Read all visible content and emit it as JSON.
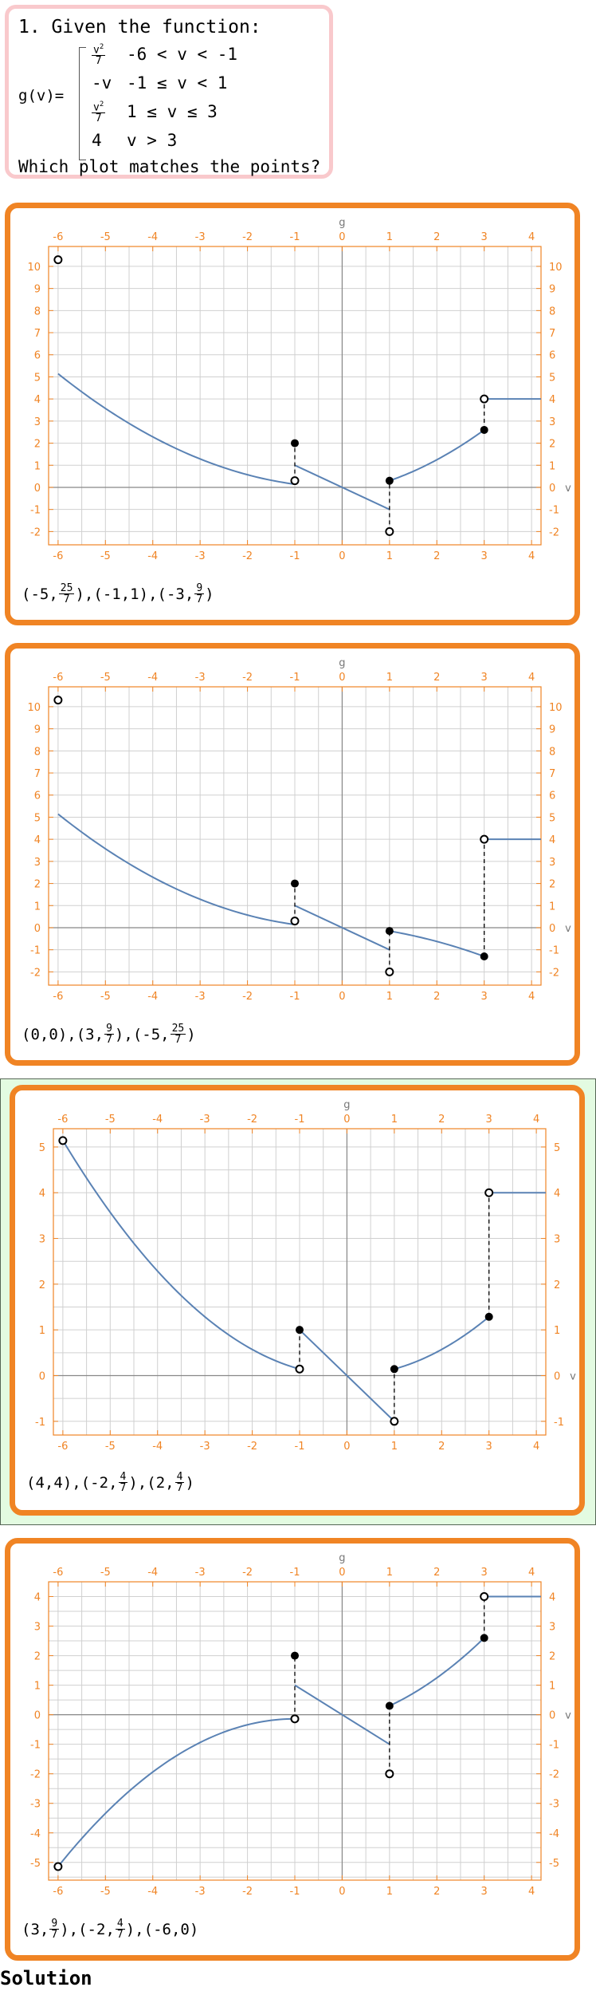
{
  "question": {
    "title": "1. Given the function:",
    "func_name": "g(v)=",
    "cases": [
      {
        "num": "v",
        "pow": "2",
        "den": "7",
        "cond": "-6 < v < -1"
      },
      {
        "expr": "-v",
        "cond": "-1 ≤ v < 1"
      },
      {
        "num": "v",
        "pow": "2",
        "den": "7",
        "cond": "1 ≤ v ≤ 3"
      },
      {
        "expr": "4",
        "cond": "v > 3"
      }
    ],
    "prompt": "Which plot matches the points?"
  },
  "options": [
    {
      "points": [
        {
          "x": "-5",
          "num": "25",
          "den": "7"
        },
        {
          "x": "-1",
          "y": "1"
        },
        {
          "x": "-3",
          "num": "9",
          "den": "7"
        }
      ],
      "chart_data": {
        "type": "line",
        "title": "",
        "xlabel": "v",
        "ylabel": "g",
        "xlim": [
          -6.2,
          4.2
        ],
        "ylim": [
          -2.6,
          10.9
        ],
        "xticks": [
          -6,
          -5,
          -4,
          -3,
          -2,
          -1,
          0,
          1,
          2,
          3,
          4
        ],
        "yticks": [
          -2,
          -1,
          0,
          1,
          2,
          3,
          4,
          5,
          6,
          7,
          8,
          9,
          10
        ],
        "grid": true,
        "grid_step_x": 0.5,
        "grid_step_y": 1,
        "segments": [
          {
            "f": "sq7",
            "from": -6,
            "to": -1
          },
          {
            "f": "negv",
            "from": -1,
            "to": 1
          },
          {
            "f": "line",
            "x1": 1,
            "y1": 0.3,
            "x2": 3,
            "y2": 2.6
          },
          {
            "f": "const",
            "value": 4,
            "from": 3,
            "to": 4.2
          }
        ],
        "open_points": [
          [
            -6,
            10.3
          ],
          [
            -1,
            0.3
          ],
          [
            1,
            -2
          ],
          [
            3,
            4
          ]
        ],
        "closed_points": [
          [
            -1,
            2
          ],
          [
            1,
            0.3
          ],
          [
            3,
            2.6
          ]
        ],
        "dashed": [
          [
            -1,
            0.3,
            2
          ],
          [
            1,
            -2,
            0.3
          ],
          [
            3,
            2.6,
            4
          ]
        ]
      }
    },
    {
      "points": [
        {
          "x": "0",
          "y": "0"
        },
        {
          "x": "3",
          "num": "9",
          "den": "7"
        },
        {
          "x": "-5",
          "num": "25",
          "den": "7"
        }
      ],
      "chart_data": {
        "type": "line",
        "title": "",
        "xlabel": "v",
        "ylabel": "g",
        "xlim": [
          -6.2,
          4.2
        ],
        "ylim": [
          -2.6,
          10.9
        ],
        "xticks": [
          -6,
          -5,
          -4,
          -3,
          -2,
          -1,
          0,
          1,
          2,
          3,
          4
        ],
        "yticks": [
          -2,
          -1,
          0,
          1,
          2,
          3,
          4,
          5,
          6,
          7,
          8,
          9,
          10
        ],
        "grid": true,
        "grid_step_x": 0.5,
        "grid_step_y": 1,
        "segments": [
          {
            "f": "sq7",
            "from": -6,
            "to": -1
          },
          {
            "f": "negv",
            "from": -1,
            "to": 1
          },
          {
            "f": "line",
            "x1": 1,
            "y1": -0.15,
            "x2": 3,
            "y2": -1.3
          },
          {
            "f": "const",
            "value": 4,
            "from": 3,
            "to": 4.2
          }
        ],
        "open_points": [
          [
            -6,
            10.3
          ],
          [
            -1,
            0.3
          ],
          [
            1,
            -2
          ],
          [
            3,
            4
          ]
        ],
        "closed_points": [
          [
            -1,
            2
          ],
          [
            1,
            -0.15
          ],
          [
            3,
            -1.3
          ]
        ],
        "dashed": [
          [
            -1,
            0.3,
            2
          ],
          [
            1,
            -2,
            -0.15
          ],
          [
            3,
            -1.3,
            4
          ]
        ]
      }
    },
    {
      "points": [
        {
          "x": "4",
          "y": "4"
        },
        {
          "x": "-2",
          "num": "4",
          "den": "7"
        },
        {
          "x": "2",
          "num": "4",
          "den": "7"
        }
      ],
      "chart_data": {
        "type": "line",
        "title": "",
        "xlabel": "v",
        "ylabel": "g",
        "xlim": [
          -6.2,
          4.2
        ],
        "ylim": [
          -1.3,
          5.4
        ],
        "xticks": [
          -6,
          -5,
          -4,
          -3,
          -2,
          -1,
          0,
          1,
          2,
          3,
          4
        ],
        "yticks": [
          -1,
          0,
          1,
          2,
          3,
          4,
          5
        ],
        "grid": true,
        "grid_step_x": 0.5,
        "grid_step_y": 0.5,
        "segments": [
          {
            "f": "sq7",
            "from": -6,
            "to": -1
          },
          {
            "f": "negv",
            "from": -1,
            "to": 1
          },
          {
            "f": "sq7",
            "from": 1,
            "to": 3
          },
          {
            "f": "const",
            "value": 4,
            "from": 3,
            "to": 4.2
          }
        ],
        "open_points": [
          [
            -6,
            5.14
          ],
          [
            -1,
            0.143
          ],
          [
            1,
            -1
          ],
          [
            3,
            4
          ]
        ],
        "closed_points": [
          [
            -1,
            1
          ],
          [
            1,
            0.143
          ],
          [
            3,
            1.286
          ]
        ],
        "dashed": [
          [
            -1,
            0.143,
            1
          ],
          [
            1,
            -1,
            0.143
          ],
          [
            3,
            1.286,
            4
          ]
        ]
      }
    },
    {
      "points": [
        {
          "x": "3",
          "num": "9",
          "den": "7"
        },
        {
          "x": "-2",
          "num": "4",
          "den": "7"
        },
        {
          "x": "-6",
          "y": "0"
        }
      ],
      "chart_data": {
        "type": "line",
        "title": "",
        "xlabel": "v",
        "ylabel": "g",
        "xlim": [
          -6.2,
          4.2
        ],
        "ylim": [
          -5.6,
          4.5
        ],
        "xticks": [
          -6,
          -5,
          -4,
          -3,
          -2,
          -1,
          0,
          1,
          2,
          3,
          4
        ],
        "yticks": [
          -5,
          -4,
          -3,
          -2,
          -1,
          0,
          1,
          2,
          3,
          4
        ],
        "grid": true,
        "grid_step_x": 0.5,
        "grid_step_y": 0.5,
        "segments": [
          {
            "f": "line",
            "x1": -6,
            "y1": -5.14,
            "x2": -1,
            "y2": -0.14,
            "curve": true
          },
          {
            "f": "negv",
            "from": -1,
            "to": 1
          },
          {
            "f": "line",
            "x1": 1,
            "y1": 0.3,
            "x2": 3,
            "y2": 2.6
          },
          {
            "f": "const",
            "value": 4,
            "from": 3,
            "to": 4.2
          }
        ],
        "open_points": [
          [
            -6,
            -5.14
          ],
          [
            -1,
            -0.14
          ],
          [
            1,
            -2
          ],
          [
            3,
            4
          ]
        ],
        "closed_points": [
          [
            -1,
            2
          ],
          [
            1,
            0.3
          ],
          [
            3,
            2.6
          ]
        ],
        "dashed": [
          [
            -1,
            -0.14,
            2
          ],
          [
            1,
            -2,
            0.3
          ],
          [
            3,
            2.6,
            4
          ]
        ]
      }
    }
  ],
  "solution_label": "Solution",
  "colors": {
    "accent": "#f08424",
    "curve": "#5a82b4",
    "highlight": "#e3fbe1",
    "question_border": "#f9c9cc"
  }
}
